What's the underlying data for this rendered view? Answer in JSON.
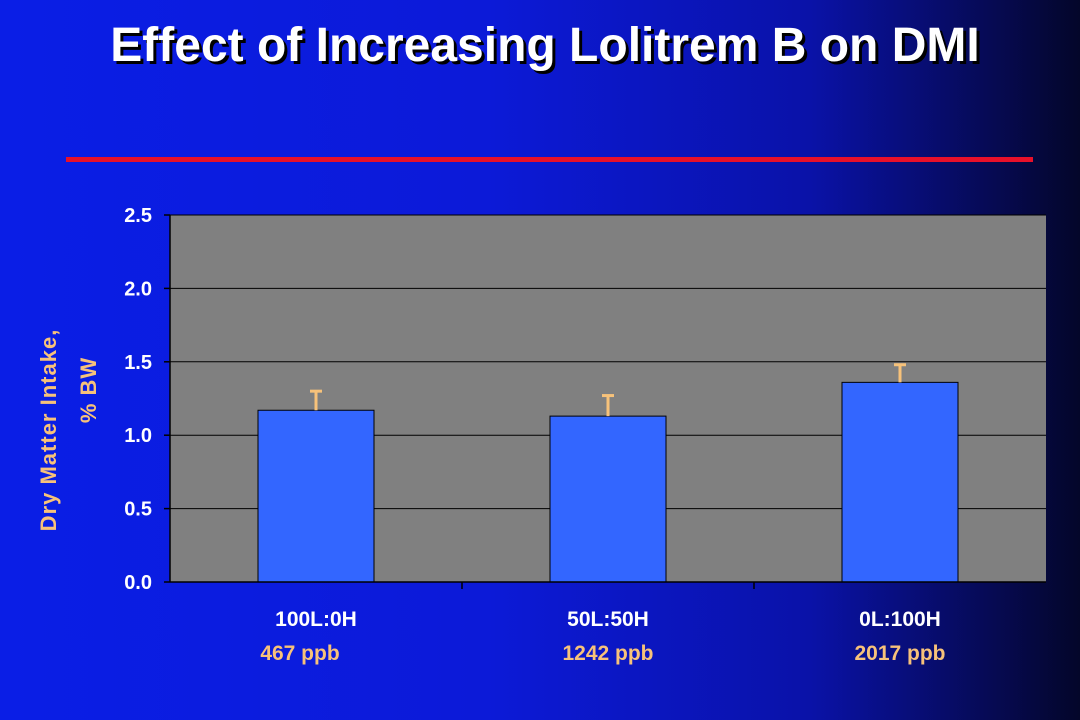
{
  "slide": {
    "title": "Effect of Increasing Lolitrem B on DMI"
  },
  "colors": {
    "background": "#0a1ee6",
    "plot_area": "#808080",
    "bar": "#3366ff",
    "accent_text": "#f7c27a",
    "rule": "#e8102a",
    "error_bar": "#f7c27a"
  },
  "chart_data": {
    "type": "bar",
    "categories": [
      "100L:0H",
      "50L:50H",
      "0L:100H"
    ],
    "sublabels": [
      "467 ppb",
      "1242 ppb",
      "2017 ppb"
    ],
    "values": [
      1.17,
      1.13,
      1.36
    ],
    "error_upper": [
      1.3,
      1.27,
      1.48
    ],
    "ylabel_line1": "Dry Matter Intake,",
    "ylabel_line2": "% BW",
    "xlabel": "",
    "ylim": [
      0,
      2.5
    ],
    "yticks": [
      "0.0",
      "0.5",
      "1.0",
      "1.5",
      "2.0",
      "2.5"
    ],
    "grid": true
  }
}
